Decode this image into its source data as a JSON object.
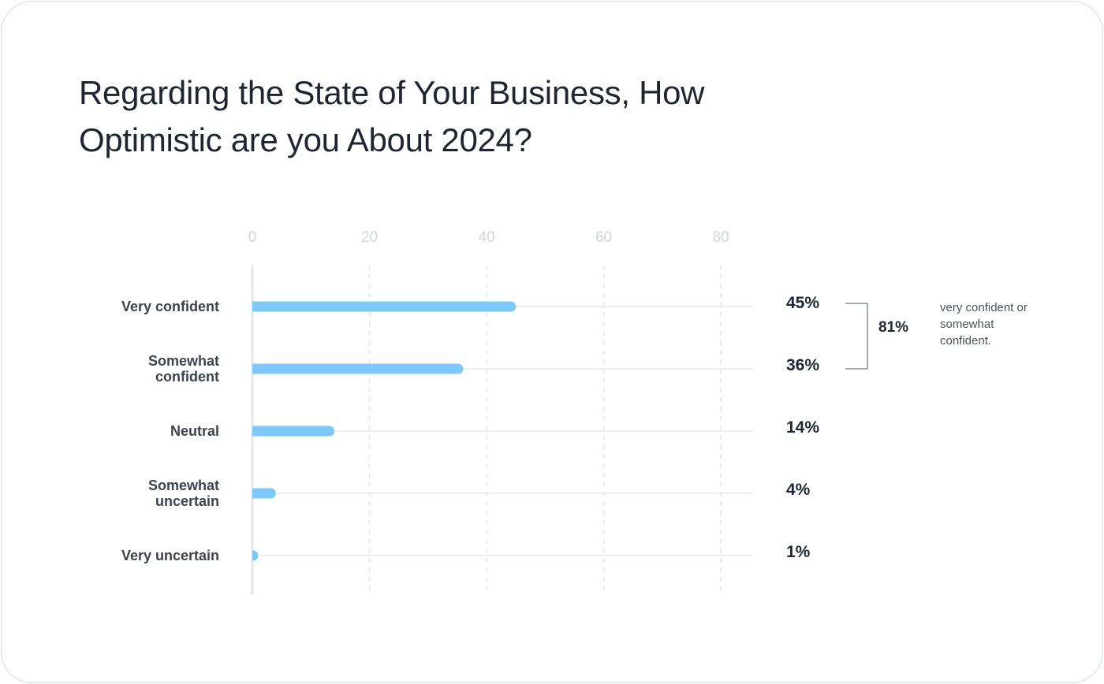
{
  "chart_data": {
    "type": "bar",
    "orientation": "horizontal",
    "title": "Regarding the State of Your Business, How Optimistic are you About 2024?",
    "categories": [
      "Very confident",
      "Somewhat confident",
      "Neutral",
      "Somewhat uncertain",
      "Very uncertain"
    ],
    "values": [
      45,
      36,
      14,
      4,
      1
    ],
    "value_labels": [
      "45%",
      "36%",
      "14%",
      "4%",
      "1%"
    ],
    "color": "#7cc8fb",
    "xlim": [
      0,
      85.5
    ],
    "xticks": [
      0,
      20,
      40,
      60,
      80
    ],
    "grid": true,
    "bracket_label": "81%",
    "annotation": "very confident or somewhat confident."
  }
}
